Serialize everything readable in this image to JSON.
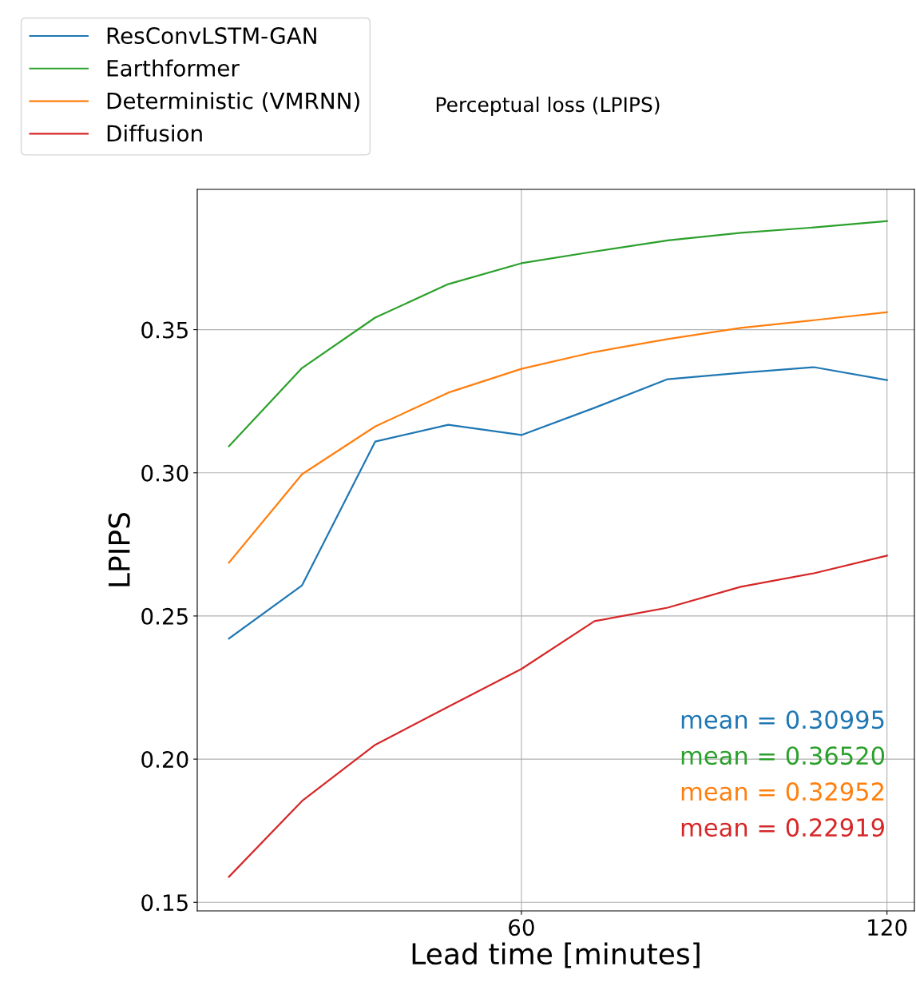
{
  "chart_data": {
    "type": "line",
    "title": "Perceptual loss (LPIPS)",
    "xlabel": "Lead time [minutes]",
    "ylabel": "LPIPS",
    "x": [
      12,
      24,
      36,
      48,
      60,
      72,
      84,
      96,
      108,
      120
    ],
    "series": [
      {
        "name": "ResConvLSTM-GAN",
        "color": "#1f77b4",
        "values": [
          0.2421,
          0.2607,
          0.3109,
          0.3168,
          0.3132,
          0.3227,
          0.3327,
          0.3349,
          0.3369,
          0.3324
        ]
      },
      {
        "name": "Earthformer",
        "color": "#2ca02c",
        "values": [
          0.3093,
          0.3366,
          0.3542,
          0.3659,
          0.3732,
          0.3773,
          0.3812,
          0.3838,
          0.3857,
          0.3879
        ]
      },
      {
        "name": "Deterministic (VMRNN)",
        "color": "#ff7f0e",
        "values": [
          0.2686,
          0.2995,
          0.3162,
          0.328,
          0.3363,
          0.3422,
          0.3467,
          0.3506,
          0.3533,
          0.3561
        ]
      },
      {
        "name": "Diffusion",
        "color": "#d62728",
        "values": [
          0.1589,
          0.1854,
          0.205,
          0.2183,
          0.2315,
          0.2482,
          0.2529,
          0.2602,
          0.2649,
          0.2711
        ]
      }
    ],
    "annotations": [
      "mean = 0.30995",
      "mean = 0.36520",
      "mean = 0.32952",
      "mean = 0.22919"
    ],
    "xlim": [
      6.8,
      124.5
    ],
    "ylim": [
      0.147,
      0.399
    ],
    "xticks": [
      60,
      120
    ],
    "yticks": [
      0.15,
      {
        "value": 0.2,
        "label": "0.20"
      },
      0.25,
      {
        "value": 0.3,
        "label": "0.30"
      },
      0.35
    ],
    "grid": true,
    "legend": "top left",
    "marker": "none",
    "line_style": "solid"
  }
}
